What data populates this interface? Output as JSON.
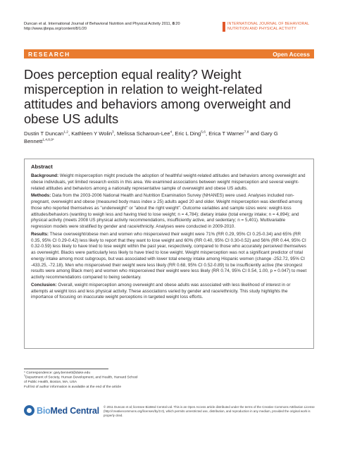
{
  "header": {
    "citation_journal": "Duncan et al. International Journal of Behavioral Nutrition and Physical Activity",
    "citation_year_vol": " 2011, ",
    "citation_issue": "8",
    "citation_page": ":20",
    "url": "http://www.ijbnpa.org/content/8/1/20",
    "journal_name_line1": "INTERNATIONAL JOURNAL OF BEHAVIORAL",
    "journal_name_line2": "NUTRITION AND PHYSICAL ACTIVITY"
  },
  "band": {
    "section": "RESEARCH",
    "access": "Open Access"
  },
  "title": "Does perception equal reality? Weight misperception in relation to weight-related attitudes and behaviors among overweight and obese US adults",
  "authors": [
    {
      "name": "Dustin T Duncan",
      "sup": "1,2"
    },
    {
      "name": "Kathleen Y Wolin",
      "sup": "3"
    },
    {
      "name": "Melissa Scharoun-Lee",
      "sup": "4"
    },
    {
      "name": "Eric L Ding",
      "sup": "5,6"
    },
    {
      "name": "Erica T Warner",
      "sup": "7,8"
    },
    {
      "name": "Gary G Bennett",
      "sup": "1,4,8,9*"
    }
  ],
  "abstract": {
    "heading": "Abstract",
    "background_label": "Background:",
    "background": " Weight misperception might preclude the adoption of healthful weight-related attitudes and behaviors among overweight and obese individuals, yet limited research exists in this area. We examined associations between weight misperception and several weight-related attitudes and behaviors among a nationally representative sample of overweight and obese US adults.",
    "methods_label": "Methods:",
    "methods": " Data from the 2003-2006 National Health and Nutrition Examination Survey (NHANES) were used. Analyses included non-pregnant, overweight and obese (measured body mass index ≥ 25) adults aged 20 and older. Weight misperception was identified among those who reported themselves as \"underweight\" or \"about the right weight\". Outcome variables and sample sizes were: weight-loss attitudes/behaviors (wanting to weigh less and having tried to lose weight; n = 4,784); dietary intake (total energy intake; n = 4,894); and physical activity (meets 2008 US physical activity recommendations, insufficiently active, and sedentary; n = 5,401). Multivariable regression models were stratified by gender and race/ethnicity. Analyses were conducted in 2009-2010.",
    "results_label": "Results:",
    "results": " These overweight/obese men and women who misperceived their weight were 71% (RR 0.29, 95% CI 0.25-0.34) and 65% (RR 0.35, 95% CI 0.29-0.42) less likely to report that they want to lose weight and 60% (RR 0.40, 95% CI 0.30-0.52) and 56% (RR 0.44, 95% CI 0.32-0.59) less likely to have tried to lose weight within the past year, respectively, compared to those who accurately perceived themselves as overweight. Blacks were particularly less likely to have tried to lose weight. Weight misperception was not a significant predictor of total energy intake among most subgroups, but was associated with lower total energy intake among Hispanic women (change -252.72, 95% CI -433.25, -72.18). Men who misperceived their weight were less likely (RR 0.68, 95% CI 0.52-0.89) to be insufficiently active (the strongest results were among Black men) and women who misperceived their weight were less likely (RR 0.74, 95% CI 0.54, 1.00, p = 0.047) to meet activity recommendations compared to being sedentary.",
    "conclusion_label": "Conclusion:",
    "conclusion": " Overall, weight misperception among overweight and obese adults was associated with less likelihood of interest in or attempts at weight loss and less physical activity. These associations varied by gender and race/ethnicity. This study highlights the importance of focusing on inaccurate weight perceptions in targeted weight loss efforts."
  },
  "footnotes": {
    "correspondence": "* Correspondence: gary.bennett@duke.edu",
    "affil_num": "1",
    "affiliation_line1": "Department of Society, Human Development, and Health, Harvard School",
    "affiliation_line2": "of Public Health, Boston, MA, USA",
    "more_info": "Full list of author information is available at the end of the article"
  },
  "publisher": {
    "logo_part1": "Bio",
    "logo_part2": "Med Central",
    "copyright": "© 2011 Duncan et al; licensee BioMed Central Ltd. This is an Open Access article distributed under the terms of the Creative Commons Attribution License (http://creativecommons.org/licenses/by/2.0), which permits unrestricted use, distribution, and reproduction in any medium, provided the original work is properly cited."
  }
}
